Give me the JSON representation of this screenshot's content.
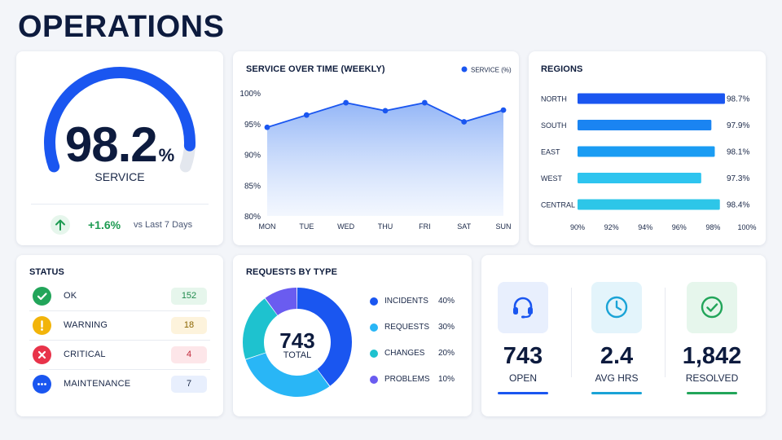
{
  "page": {
    "title": "OPERATIONS"
  },
  "colors": {
    "brand_blue": "#1a56f0",
    "light_blue": "#1aa3ff",
    "cyan": "#1ec2da",
    "violet": "#6a5cf0",
    "green": "#22a55a",
    "amber": "#f2b40a",
    "red": "#e8334a",
    "track_gray": "#e3e7ee"
  },
  "gauge": {
    "value": "98.2",
    "unit": "%",
    "level": 0.92,
    "label": "SERVICE",
    "delta": "+1.6%",
    "delta_note": "vs Last 7 Days",
    "trend_icon": "arrow-up-icon"
  },
  "service_over_time": {
    "title": "SERVICE OVER TIME (WEEKLY)",
    "legend": "SERVICE (%)",
    "chart_data": {
      "type": "area",
      "categories": [
        "MON",
        "TUE",
        "WED",
        "THU",
        "FRI",
        "SAT",
        "SUN"
      ],
      "series": [
        {
          "name": "SERVICE (%)",
          "values": [
            94.4,
            96.4,
            98.4,
            97.1,
            98.4,
            95.3,
            97.2
          ]
        }
      ],
      "ylim": [
        80,
        100
      ],
      "yticks": [
        "80%",
        "85%",
        "90%",
        "95%",
        "100%"
      ],
      "grid": false,
      "legend_position": "top-right"
    }
  },
  "regions": {
    "title": "REGIONS",
    "chart_data": {
      "type": "bar",
      "orientation": "horizontal",
      "categories": [
        "NORTH",
        "SOUTH",
        "EAST",
        "WEST",
        "CENTRAL"
      ],
      "values": [
        98.7,
        97.9,
        98.1,
        97.3,
        98.4
      ],
      "value_labels": [
        "98.7%",
        "97.9%",
        "98.1%",
        "97.3%",
        "98.4%"
      ],
      "colors": [
        "#1a56f0",
        "#1a84f2",
        "#1a9cf3",
        "#2ec4ef",
        "#2dc6e8"
      ],
      "xlim": [
        90,
        100
      ],
      "xticks": [
        "90%",
        "92%",
        "94%",
        "96%",
        "98%",
        "100%"
      ]
    }
  },
  "status": {
    "title": "STATUS",
    "items": [
      {
        "label": "OK",
        "count": "152",
        "icon": "check-icon",
        "color": "#22a55a",
        "badge_bg": "#e6f6ec",
        "badge_fg": "#1f8a4c"
      },
      {
        "label": "WARNING",
        "count": "18",
        "icon": "exclamation-icon",
        "color": "#f2b40a",
        "badge_bg": "#fdf3dc",
        "badge_fg": "#8a6400"
      },
      {
        "label": "CRITICAL",
        "count": "4",
        "icon": "x-icon",
        "color": "#e8334a",
        "badge_bg": "#fde6e9",
        "badge_fg": "#c0283a"
      },
      {
        "label": "MAINTENANCE",
        "count": "7",
        "icon": "ellipsis-icon",
        "color": "#1a56f0",
        "badge_bg": "#e8effd",
        "badge_fg": "#1a2848"
      }
    ]
  },
  "requests_by_type": {
    "title": "REQUESTS BY TYPE",
    "center_value": "743",
    "center_label": "TOTAL",
    "chart_data": {
      "type": "pie",
      "donut": true,
      "categories": [
        "INCIDENTS",
        "REQUESTS",
        "CHANGES",
        "PROBLEMS"
      ],
      "values": [
        40,
        30,
        20,
        10
      ],
      "value_labels": [
        "40%",
        "30%",
        "20%",
        "10%"
      ],
      "colors": [
        "#1a56f0",
        "#29b6f6",
        "#1ec2cf",
        "#6a5cf0"
      ]
    }
  },
  "kpis": [
    {
      "value": "743",
      "label": "OPEN",
      "icon": "headset-icon",
      "color": "#1a56f0",
      "icon_bg": "#e8effd"
    },
    {
      "value": "2.4",
      "label": "AVG HRS",
      "icon": "clock-icon",
      "color": "#1aa3d6",
      "icon_bg": "#e3f4fb"
    },
    {
      "value": "1,842",
      "label": "RESOLVED",
      "icon": "check-circle-icon",
      "color": "#22a55a",
      "icon_bg": "#e6f6ec"
    }
  ]
}
